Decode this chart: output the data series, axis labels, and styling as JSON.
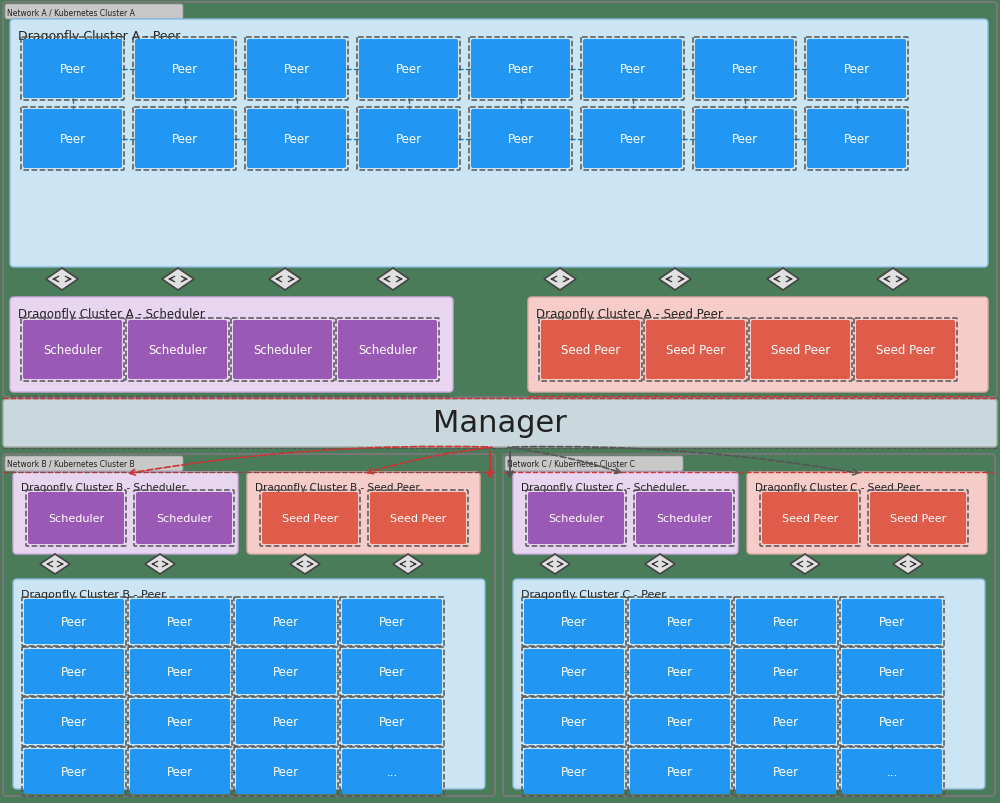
{
  "bg_color": "#4a7c59",
  "manager_bg": "#c8d8dc",
  "peer_cluster_bg": "#cce5f5",
  "peer_box_color": "#2196f3",
  "scheduler_cluster_bg": "#e8d5f0",
  "scheduler_box_color": "#9b59b6",
  "seedpeer_cluster_bg": "#f5ccc8",
  "seedpeer_box_color": "#e05c4a",
  "text_white": "#ffffff",
  "text_dark": "#222222",
  "border_dark": "#555555",
  "dashed_blue": "#2277aa",
  "arrow_red": "#cc3333",
  "arrow_dark": "#555555",
  "network_label_bg": "#c8c8c8",
  "manager_title": "Manager",
  "cluster_a_peer_label": "Dragonfly Cluster A - Peer",
  "cluster_a_sch_label": "Dragonfly Cluster A - Scheduler",
  "cluster_a_sp_label": "Dragonfly Cluster A - Seed Peer",
  "cluster_b_peer_label": "Dragonfly Cluster B - Peer",
  "cluster_b_sch_label": "Dragonfly Cluster B - Scheduler",
  "cluster_b_sp_label": "Dragonfly Cluster B - Seed Peer",
  "cluster_c_peer_label": "Dragonfly Cluster C - Peer",
  "cluster_c_sch_label": "Dragonfly Cluster C - Scheduler",
  "cluster_c_sp_label": "Dragonfly Cluster C - Seed Peer",
  "network_a_label": "Network A / Kubernetes Cluster A",
  "network_b_label": "Network B / Kubernetes Cluster B",
  "network_c_label": "Network C / Kubernetes Cluster C"
}
